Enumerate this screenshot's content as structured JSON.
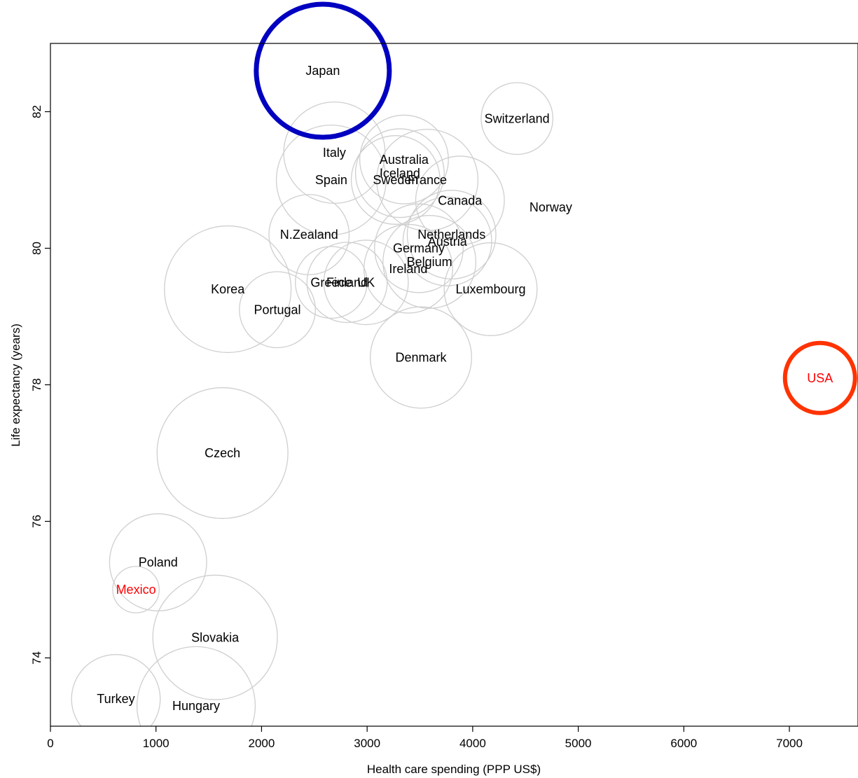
{
  "chart_data": {
    "type": "scatter",
    "title": "",
    "xlabel": "Health care spending (PPP US$)",
    "ylabel": "Life expectancy (years)",
    "xlim": [
      0,
      7650
    ],
    "ylim": [
      73.0,
      83.0
    ],
    "xticks": [
      "0",
      "1000",
      "2000",
      "3000",
      "4000",
      "5000",
      "6000",
      "7000"
    ],
    "yticks": [
      "74",
      "76",
      "78",
      "80",
      "82"
    ],
    "grid": false,
    "legend": "none",
    "colors": {
      "bubble": "#cfcfcf",
      "label": "#000000",
      "highlight_label": "#ff0000",
      "highlight_blue": "#0000c0",
      "highlight_red": "#ff3300"
    },
    "points": [
      {
        "label": "Japan",
        "x": 2580,
        "y": 82.6,
        "r": 620,
        "ring": "blue"
      },
      {
        "label": "Switzerland",
        "x": 4420,
        "y": 81.9,
        "r": 340
      },
      {
        "label": "Italy",
        "x": 2690,
        "y": 81.4,
        "r": 480
      },
      {
        "label": "Australia",
        "x": 3350,
        "y": 81.3,
        "r": 420
      },
      {
        "label": "Iceland",
        "x": 3310,
        "y": 81.1,
        "r": 420
      },
      {
        "label": "Spain",
        "x": 2660,
        "y": 81.0,
        "r": 520
      },
      {
        "label": "Sweden",
        "x": 3270,
        "y": 81.0,
        "r": 420
      },
      {
        "label": "France",
        "x": 3570,
        "y": 81.0,
        "r": 480
      },
      {
        "label": "Canada",
        "x": 3880,
        "y": 80.7,
        "r": 420
      },
      {
        "label": "Norway",
        "x": 4740,
        "y": 80.6,
        "r": 0
      },
      {
        "label": "N.Zealand",
        "x": 2450,
        "y": 80.2,
        "r": 380
      },
      {
        "label": "Netherlands",
        "x": 3800,
        "y": 80.2,
        "r": 420
      },
      {
        "label": "Austria",
        "x": 3760,
        "y": 80.1,
        "r": 420
      },
      {
        "label": "Germany",
        "x": 3490,
        "y": 80.0,
        "r": 420
      },
      {
        "label": "Belgium",
        "x": 3590,
        "y": 79.8,
        "r": 440
      },
      {
        "label": "Ireland",
        "x": 3390,
        "y": 79.7,
        "r": 420
      },
      {
        "label": "Greece",
        "x": 2660,
        "y": 79.5,
        "r": 340
      },
      {
        "label": "Finland",
        "x": 2810,
        "y": 79.5,
        "r": 380
      },
      {
        "label": "UK",
        "x": 2990,
        "y": 79.5,
        "r": 400
      },
      {
        "label": "Luxembourg",
        "x": 4170,
        "y": 79.4,
        "r": 440
      },
      {
        "label": "Korea",
        "x": 1680,
        "y": 79.4,
        "r": 600
      },
      {
        "label": "Portugal",
        "x": 2150,
        "y": 79.1,
        "r": 360
      },
      {
        "label": "Denmark",
        "x": 3510,
        "y": 78.4,
        "r": 480
      },
      {
        "label": "USA",
        "x": 7290,
        "y": 78.1,
        "r": 0,
        "ring": "red",
        "highlight": true
      },
      {
        "label": "Czech",
        "x": 1630,
        "y": 77.0,
        "r": 620
      },
      {
        "label": "Poland",
        "x": 1020,
        "y": 75.4,
        "r": 460
      },
      {
        "label": "Mexico",
        "x": 810,
        "y": 75.0,
        "r": 220,
        "highlight": true
      },
      {
        "label": "Slovakia",
        "x": 1560,
        "y": 74.3,
        "r": 590
      },
      {
        "label": "Turkey",
        "x": 620,
        "y": 73.4,
        "r": 420
      },
      {
        "label": "Hungary",
        "x": 1380,
        "y": 73.3,
        "r": 560
      }
    ]
  }
}
